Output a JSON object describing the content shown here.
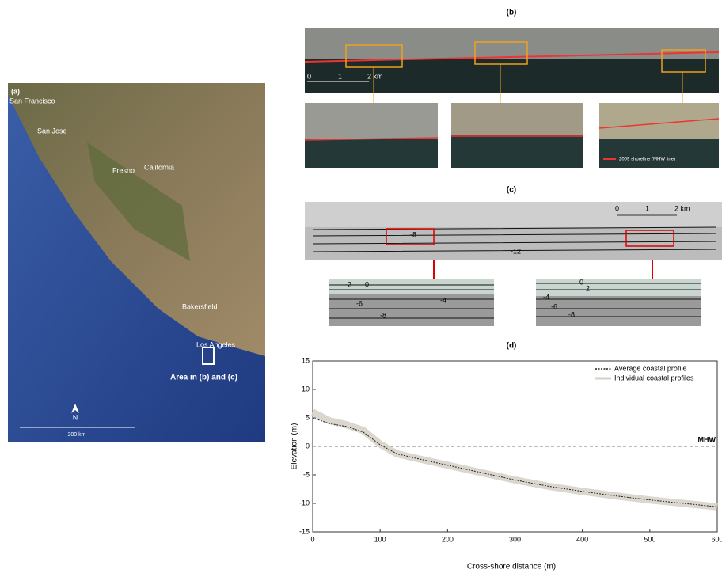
{
  "panel_a": {
    "label": "(a)",
    "places": [
      "San Francisco",
      "San Jose",
      "Fresno",
      "California",
      "Bakersfield",
      "Los Angeles"
    ],
    "area_label": "Area in (b) and (c)",
    "north": "N",
    "scale": "200 km"
  },
  "panel_b": {
    "label": "(b)",
    "scale": [
      "0",
      "1",
      "2 km"
    ],
    "legend": "2009 shoreline (MHW line)"
  },
  "panel_c": {
    "label": "(c)",
    "scale": [
      "0",
      "1",
      "2 km"
    ],
    "contours_main": [
      "-8",
      "-12"
    ],
    "contours_left": [
      "0",
      "-2",
      "-4",
      "-6",
      "-8"
    ],
    "contours_right": [
      "0",
      "2",
      "-4",
      "-6",
      "-8"
    ]
  },
  "chart_data": {
    "type": "line",
    "label": "(d)",
    "xlabel": "Cross-shore distance (m)",
    "ylabel": "Elevation (m)",
    "x": [
      0,
      25,
      50,
      75,
      100,
      125,
      150,
      200,
      250,
      300,
      350,
      400,
      450,
      500,
      550,
      600
    ],
    "series": [
      {
        "name": "Individual coastal profiles",
        "color": "#d6d0c6",
        "values": [
          6,
          4.5,
          3.8,
          2.8,
          0.4,
          -1.3,
          -2,
          -3.3,
          -4.6,
          -5.9,
          -7,
          -7.9,
          -8.7,
          -9.4,
          -10,
          -10.6
        ]
      },
      {
        "name": "Average coastal profile",
        "color": "#222222",
        "values": [
          5,
          4,
          3.5,
          2.5,
          0.3,
          -1.3,
          -2,
          -3.3,
          -4.6,
          -5.9,
          -7,
          -7.9,
          -8.7,
          -9.4,
          -10,
          -10.6
        ]
      }
    ],
    "xlim": [
      0,
      600
    ],
    "xticks": [
      0,
      100,
      200,
      300,
      400,
      500,
      600
    ],
    "ylim": [
      -15,
      15
    ],
    "yticks": [
      -15,
      -10,
      -5,
      0,
      5,
      10,
      15
    ],
    "hline": {
      "value": 0,
      "label": "MHW"
    }
  }
}
